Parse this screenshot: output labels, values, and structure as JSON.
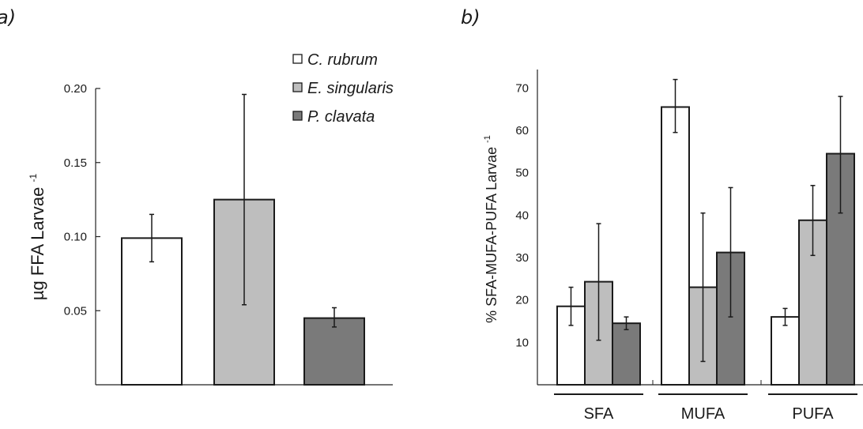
{
  "chart_data": [
    {
      "type": "bar",
      "panel": "a)",
      "ylabel": "µg FFA  Larvae",
      "ylabel_superscript": "-1",
      "ylim": [
        0,
        0.2
      ],
      "y_ticks": [
        "0.05",
        "0.10",
        "0.15",
        "0.20"
      ],
      "categories": [
        "C. rubrum",
        "E. singularis",
        "P. clavata"
      ],
      "values": [
        0.099,
        0.125,
        0.045
      ],
      "error_bars": [
        [
          0.083,
          0.115
        ],
        [
          0.054,
          0.196
        ],
        [
          0.039,
          0.052
        ]
      ],
      "colors": [
        "#ffffff",
        "#bebebe",
        "#7a7a7a"
      ],
      "legend": {
        "placement": "top-right",
        "entries": [
          "C. rubrum",
          "E. singularis",
          "P. clavata"
        ],
        "marker": "□"
      }
    },
    {
      "type": "bar",
      "panel": "b)",
      "ylabel": "% SFA-MUFA-PUFA Larvae",
      "ylabel_superscript": "-1",
      "ylim": [
        0,
        75
      ],
      "y_ticks": [
        "10",
        "20",
        "30",
        "40",
        "50",
        "60",
        "70"
      ],
      "categories": [
        "SFA",
        "MUFA",
        "PUFA"
      ],
      "series": [
        {
          "name": "C. rubrum",
          "color": "#ffffff",
          "values": [
            18.5,
            65.5,
            16.0
          ],
          "error_bars": [
            [
              14,
              23
            ],
            [
              59.5,
              72
            ],
            [
              14,
              18
            ]
          ]
        },
        {
          "name": "E. singularis",
          "color": "#bebebe",
          "values": [
            24.3,
            23.0,
            38.8
          ],
          "error_bars": [
            [
              10.5,
              38
            ],
            [
              5.5,
              40.5
            ],
            [
              30.5,
              47
            ]
          ]
        },
        {
          "name": "P. clavata",
          "color": "#7a7a7a",
          "values": [
            14.5,
            31.2,
            54.5
          ],
          "error_bars": [
            [
              13,
              16
            ],
            [
              16,
              46.5
            ],
            [
              40.5,
              68
            ]
          ]
        }
      ]
    }
  ]
}
